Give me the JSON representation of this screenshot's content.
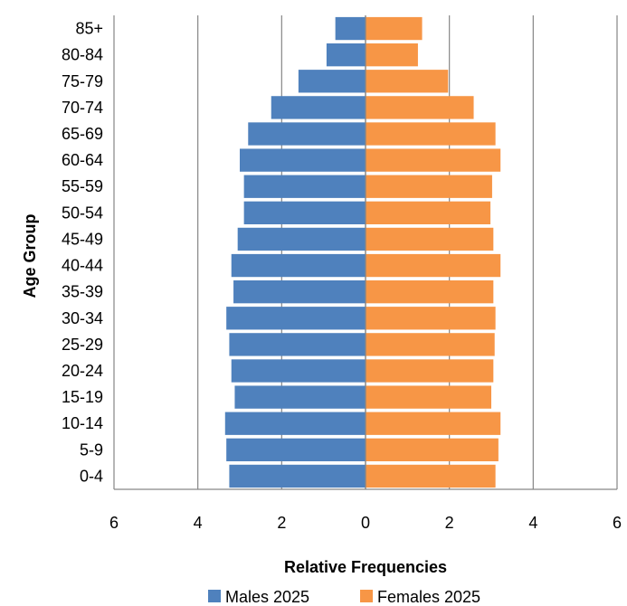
{
  "chart_data": {
    "type": "bar",
    "orientation": "horizontal",
    "layout": "population-pyramid",
    "categories": [
      "0-4",
      "5-9",
      "10-14",
      "15-19",
      "20-24",
      "25-29",
      "30-34",
      "35-39",
      "40-44",
      "45-49",
      "50-54",
      "55-59",
      "60-64",
      "65-69",
      "70-74",
      "75-79",
      "80-84",
      "85+"
    ],
    "series": [
      {
        "name": "Males 2025",
        "color": "#4f81bd",
        "side": "left",
        "values": [
          3.25,
          3.32,
          3.35,
          3.12,
          3.2,
          3.25,
          3.32,
          3.15,
          3.2,
          3.05,
          2.9,
          2.9,
          3.0,
          2.8,
          2.25,
          1.6,
          0.93,
          0.72
        ]
      },
      {
        "name": "Females 2025",
        "color": "#f79646",
        "side": "right",
        "values": [
          3.1,
          3.17,
          3.22,
          3.0,
          3.05,
          3.08,
          3.1,
          3.05,
          3.22,
          3.05,
          2.98,
          3.02,
          3.22,
          3.1,
          2.58,
          1.97,
          1.25,
          1.35
        ]
      }
    ],
    "xlabel": "Relative Frequencies",
    "ylabel": "Age Group",
    "xticks": [
      "6",
      "4",
      "2",
      "0",
      "2",
      "4",
      "6"
    ],
    "xlim": [
      -6,
      6
    ],
    "grid": "vertical",
    "legend": "bottom"
  }
}
